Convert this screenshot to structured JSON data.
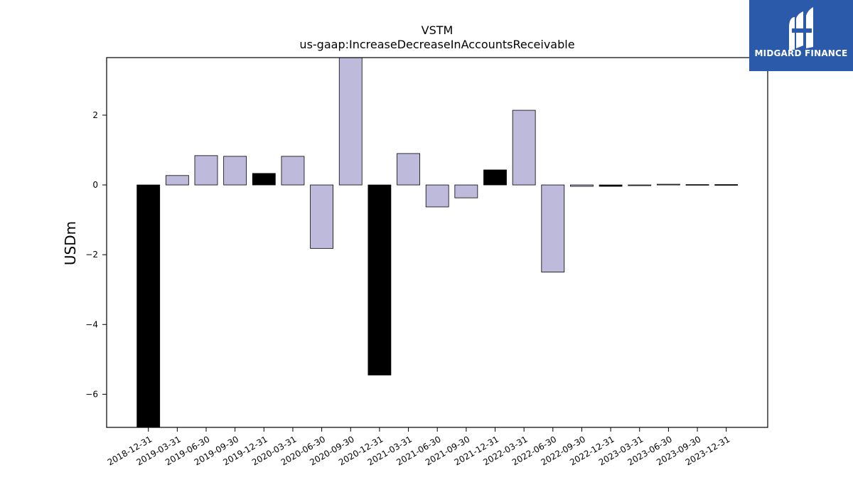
{
  "chart_data": {
    "type": "bar",
    "title": "VSTM",
    "subtitle": "us-gaap:IncreaseDecreaseInAccountsReceivable",
    "ylabel": "USDm",
    "xlabel": "",
    "ylim": [
      -6.95,
      3.65
    ],
    "yticks": [
      2,
      0,
      -2,
      -4,
      -6
    ],
    "ytick_labels": [
      "2",
      "0",
      "−2",
      "−4",
      "−6"
    ],
    "grid": false,
    "categories": [
      "2018-12-31",
      "2019-03-31",
      "2019-06-30",
      "2019-09-30",
      "2019-12-31",
      "2020-03-31",
      "2020-06-30",
      "2020-09-30",
      "2020-12-31",
      "2021-03-31",
      "2021-06-30",
      "2021-09-30",
      "2021-12-31",
      "2022-03-31",
      "2022-06-30",
      "2022-09-30",
      "2022-12-31",
      "2023-03-31",
      "2023-06-30",
      "2023-09-30",
      "2023-12-31"
    ],
    "values": [
      -6.95,
      0.27,
      0.84,
      0.82,
      0.33,
      0.82,
      -1.82,
      3.65,
      -5.45,
      0.9,
      -0.63,
      -0.37,
      0.43,
      2.14,
      -2.5,
      -0.04,
      -0.04,
      -0.02,
      0.02,
      0.01,
      0.01
    ],
    "fiscal_year_end": [
      true,
      false,
      false,
      false,
      true,
      false,
      false,
      false,
      true,
      false,
      false,
      false,
      true,
      false,
      false,
      false,
      true,
      false,
      false,
      false,
      true
    ],
    "colors": {
      "quarter": "#bebadb",
      "year_end": "#000000",
      "edge": "#000000"
    }
  },
  "logo": {
    "text": "MIDGARD FINANCE",
    "background": "#2b5aab"
  }
}
